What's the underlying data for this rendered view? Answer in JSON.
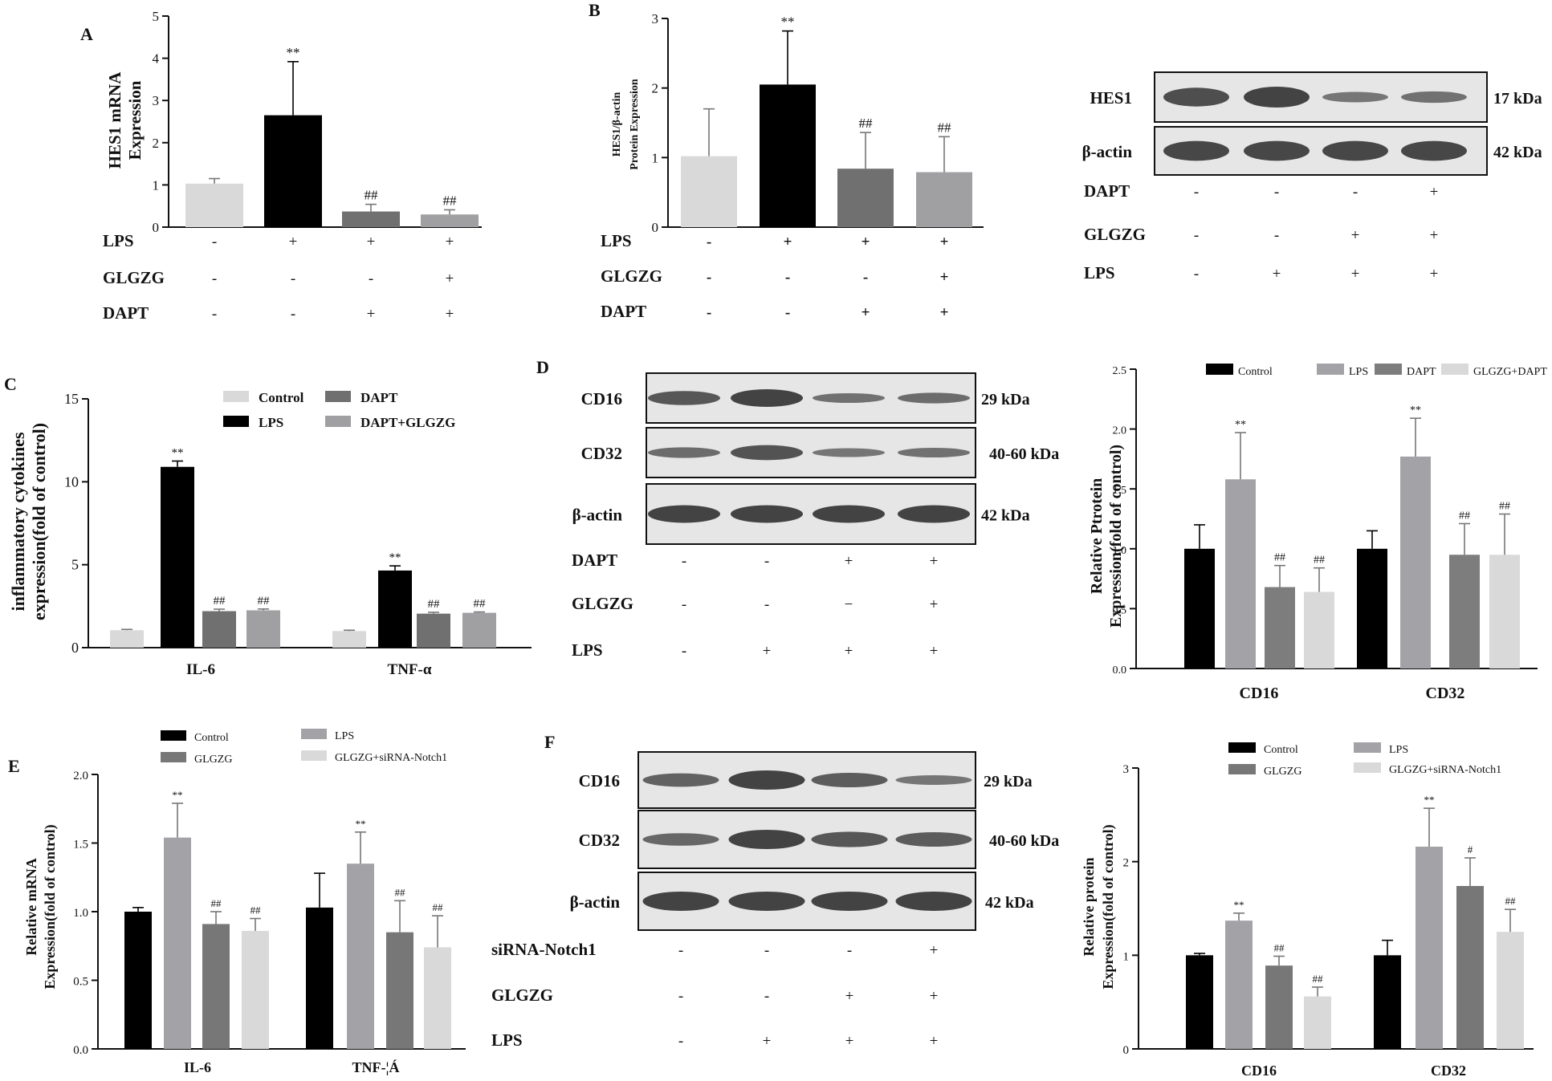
{
  "colors": {
    "control": "#d9d9d9",
    "lps": "#000000",
    "dapt": "#707070",
    "glgzg_dapt": "#a0a0a3",
    "c_lps": "#000000",
    "d_control": "#000000",
    "d_lps": "#a3a3a7",
    "d_dapt": "#7d7d7d",
    "d_glgzg_dapt": "#d9d9d9",
    "e_control": "#000000",
    "e_lps": "#a3a3a7",
    "e_glgzg": "#777777",
    "e_sirna": "#d9d9d9",
    "blot_bg": "#e6e6e6",
    "band": "#3a3a3a"
  },
  "panels": {
    "A": {
      "letter": "A"
    },
    "B": {
      "letter": "B"
    },
    "C": {
      "letter": "C"
    },
    "D": {
      "letter": "D"
    },
    "E": {
      "letter": "E"
    },
    "F": {
      "letter": "F"
    }
  },
  "blot_B": {
    "rows": [
      {
        "label": "HES1",
        "kda": "17 kDa"
      },
      {
        "label": "β-actin",
        "kda": "42 kDa"
      }
    ],
    "treatments": [
      {
        "label": "DAPT",
        "signs": [
          "-",
          "-",
          "-",
          "+"
        ]
      },
      {
        "label": "GLGZG",
        "signs": [
          "-",
          "-",
          "+",
          "+"
        ]
      },
      {
        "label": "LPS",
        "signs": [
          "-",
          "+",
          "+",
          "+"
        ]
      }
    ]
  },
  "blot_D": {
    "rows": [
      {
        "label": "CD16",
        "kda": "29 kDa"
      },
      {
        "label": "CD32",
        "kda": "40-60 kDa"
      },
      {
        "label": "β-actin",
        "kda": "42 kDa"
      }
    ],
    "treatments": [
      {
        "label": "DAPT",
        "signs": [
          "-",
          "-",
          "+",
          "+"
        ]
      },
      {
        "label": "GLGZG",
        "signs": [
          "-",
          "-",
          "−",
          "+"
        ]
      },
      {
        "label": "LPS",
        "signs": [
          "-",
          "+",
          "+",
          "+"
        ]
      }
    ]
  },
  "blot_F": {
    "rows": [
      {
        "label": "CD16",
        "kda": "29 kDa"
      },
      {
        "label": "CD32",
        "kda": "40-60 kDa"
      },
      {
        "label": "β-actin",
        "kda": "42 kDa"
      }
    ],
    "treatments": [
      {
        "label": "siRNA-Notch1",
        "signs": [
          "-",
          "-",
          "-",
          "+"
        ]
      },
      {
        "label": "GLGZG",
        "signs": [
          "-",
          "-",
          "+",
          "+"
        ]
      },
      {
        "label": "LPS",
        "signs": [
          "-",
          "+",
          "+",
          "+"
        ]
      }
    ]
  },
  "chart_data": [
    {
      "id": "A",
      "type": "bar",
      "ylabel": "HES1 mRNA Expression",
      "ylim": [
        0,
        5
      ],
      "yticks": [
        0,
        1,
        2,
        3,
        4,
        5
      ],
      "values": [
        1.03,
        2.65,
        0.37,
        0.3
      ],
      "errors": [
        0.12,
        1.27,
        0.17,
        0.11
      ],
      "annotations": [
        "",
        "**",
        "##",
        "##"
      ],
      "treatments": [
        {
          "label": "LPS",
          "signs": [
            "-",
            "+",
            "+",
            "+"
          ]
        },
        {
          "label": "GLGZG",
          "signs": [
            "-",
            "-",
            "-",
            "+"
          ]
        },
        {
          "label": "DAPT",
          "signs": [
            "-",
            "-",
            "+",
            "+"
          ]
        }
      ]
    },
    {
      "id": "B",
      "type": "bar",
      "ylabel": "HES1/β-actin Protein Expression",
      "ylim": [
        0,
        3
      ],
      "yticks": [
        0,
        1,
        2,
        3
      ],
      "values": [
        1.02,
        2.05,
        0.84,
        0.79
      ],
      "errors": [
        0.68,
        0.77,
        0.52,
        0.51
      ],
      "annotations": [
        "",
        "**",
        "##",
        "##"
      ],
      "treatments": [
        {
          "label": "LPS",
          "signs": [
            "-",
            "+",
            "+",
            "+"
          ]
        },
        {
          "label": "GLGZG",
          "signs": [
            "-",
            "-",
            "-",
            "+"
          ]
        },
        {
          "label": "DAPT",
          "signs": [
            "-",
            "-",
            "+",
            "+"
          ]
        }
      ]
    },
    {
      "id": "C",
      "type": "bar",
      "ylabel": "inflammatory cytokines expression(fold of control)",
      "ylim": [
        0,
        15
      ],
      "yticks": [
        0,
        5,
        10,
        15
      ],
      "categories": [
        "IL-6",
        "TNF-α"
      ],
      "series": [
        {
          "name": "Control",
          "values": [
            1.05,
            1.0
          ],
          "errors": [
            0.05,
            0.05
          ],
          "annotations": [
            "",
            ""
          ]
        },
        {
          "name": "LPS",
          "values": [
            10.9,
            4.65
          ],
          "errors": [
            0.35,
            0.28
          ],
          "annotations": [
            "**",
            "**"
          ]
        },
        {
          "name": "DAPT",
          "values": [
            2.2,
            2.05
          ],
          "errors": [
            0.12,
            0.08
          ],
          "annotations": [
            "##",
            "##"
          ]
        },
        {
          "name": "DAPT+GLGZG",
          "values": [
            2.25,
            2.1
          ],
          "errors": [
            0.08,
            0.05
          ],
          "annotations": [
            "##",
            "##"
          ]
        }
      ]
    },
    {
      "id": "D",
      "type": "bar",
      "ylabel": "Relative Protein Expression(fold of control)",
      "ylim": [
        0,
        2.5
      ],
      "yticks": [
        "0.0",
        "0.5",
        "1.0",
        "1.5",
        "2.0",
        "2.5"
      ],
      "categories": [
        "CD16",
        "CD32"
      ],
      "series": [
        {
          "name": "Control",
          "values": [
            1.0,
            1.0
          ],
          "errors": [
            0.2,
            0.15
          ],
          "annotations": [
            "",
            ""
          ]
        },
        {
          "name": "LPS",
          "values": [
            1.58,
            1.77
          ],
          "errors": [
            0.39,
            0.32
          ],
          "annotations": [
            "**",
            "**"
          ]
        },
        {
          "name": "DAPT",
          "values": [
            0.68,
            0.95
          ],
          "errors": [
            0.18,
            0.26
          ],
          "annotations": [
            "##",
            "##"
          ]
        },
        {
          "name": "GLGZG+DAPT",
          "values": [
            0.64,
            0.95
          ],
          "errors": [
            0.2,
            0.34
          ],
          "annotations": [
            "##",
            "##"
          ]
        }
      ]
    },
    {
      "id": "E",
      "type": "bar",
      "ylabel": "Relative mRNA Expression(fold of control)",
      "ylim": [
        0,
        2.0
      ],
      "yticks": [
        "0.0",
        "0.5",
        "1.0",
        "1.5",
        "2.0"
      ],
      "categories": [
        "IL-6",
        "TNF-¦Á"
      ],
      "series": [
        {
          "name": "Control",
          "values": [
            1.0,
            1.03
          ],
          "errors": [
            0.03,
            0.25
          ],
          "annotations": [
            "",
            ""
          ]
        },
        {
          "name": "LPS",
          "values": [
            1.54,
            1.35
          ],
          "errors": [
            0.25,
            0.23
          ],
          "annotations": [
            "**",
            "**"
          ]
        },
        {
          "name": "GLGZG",
          "values": [
            0.91,
            0.85
          ],
          "errors": [
            0.09,
            0.23
          ],
          "annotations": [
            "##",
            "##"
          ]
        },
        {
          "name": "GLGZG+siRNA-Notch1",
          "values": [
            0.86,
            0.74
          ],
          "errors": [
            0.09,
            0.23
          ],
          "annotations": [
            "##",
            "##"
          ]
        }
      ]
    },
    {
      "id": "F",
      "type": "bar",
      "ylabel": "Relative protein Expression(fold of control)",
      "ylim": [
        0,
        3
      ],
      "yticks": [
        0,
        1,
        2,
        3
      ],
      "categories": [
        "CD16",
        "CD32"
      ],
      "series": [
        {
          "name": "Control",
          "values": [
            1.0,
            1.0
          ],
          "errors": [
            0.02,
            0.16
          ],
          "annotations": [
            "",
            ""
          ]
        },
        {
          "name": "LPS",
          "values": [
            1.37,
            2.16
          ],
          "errors": [
            0.08,
            0.41
          ],
          "annotations": [
            "**",
            "**"
          ]
        },
        {
          "name": "GLGZG",
          "values": [
            0.89,
            1.74
          ],
          "errors": [
            0.1,
            0.3
          ],
          "annotations": [
            "##",
            "#"
          ]
        },
        {
          "name": "GLGZG+siRNA-Notch1",
          "values": [
            0.56,
            1.25
          ],
          "errors": [
            0.1,
            0.24
          ],
          "annotations": [
            "##",
            "##"
          ]
        }
      ]
    }
  ]
}
